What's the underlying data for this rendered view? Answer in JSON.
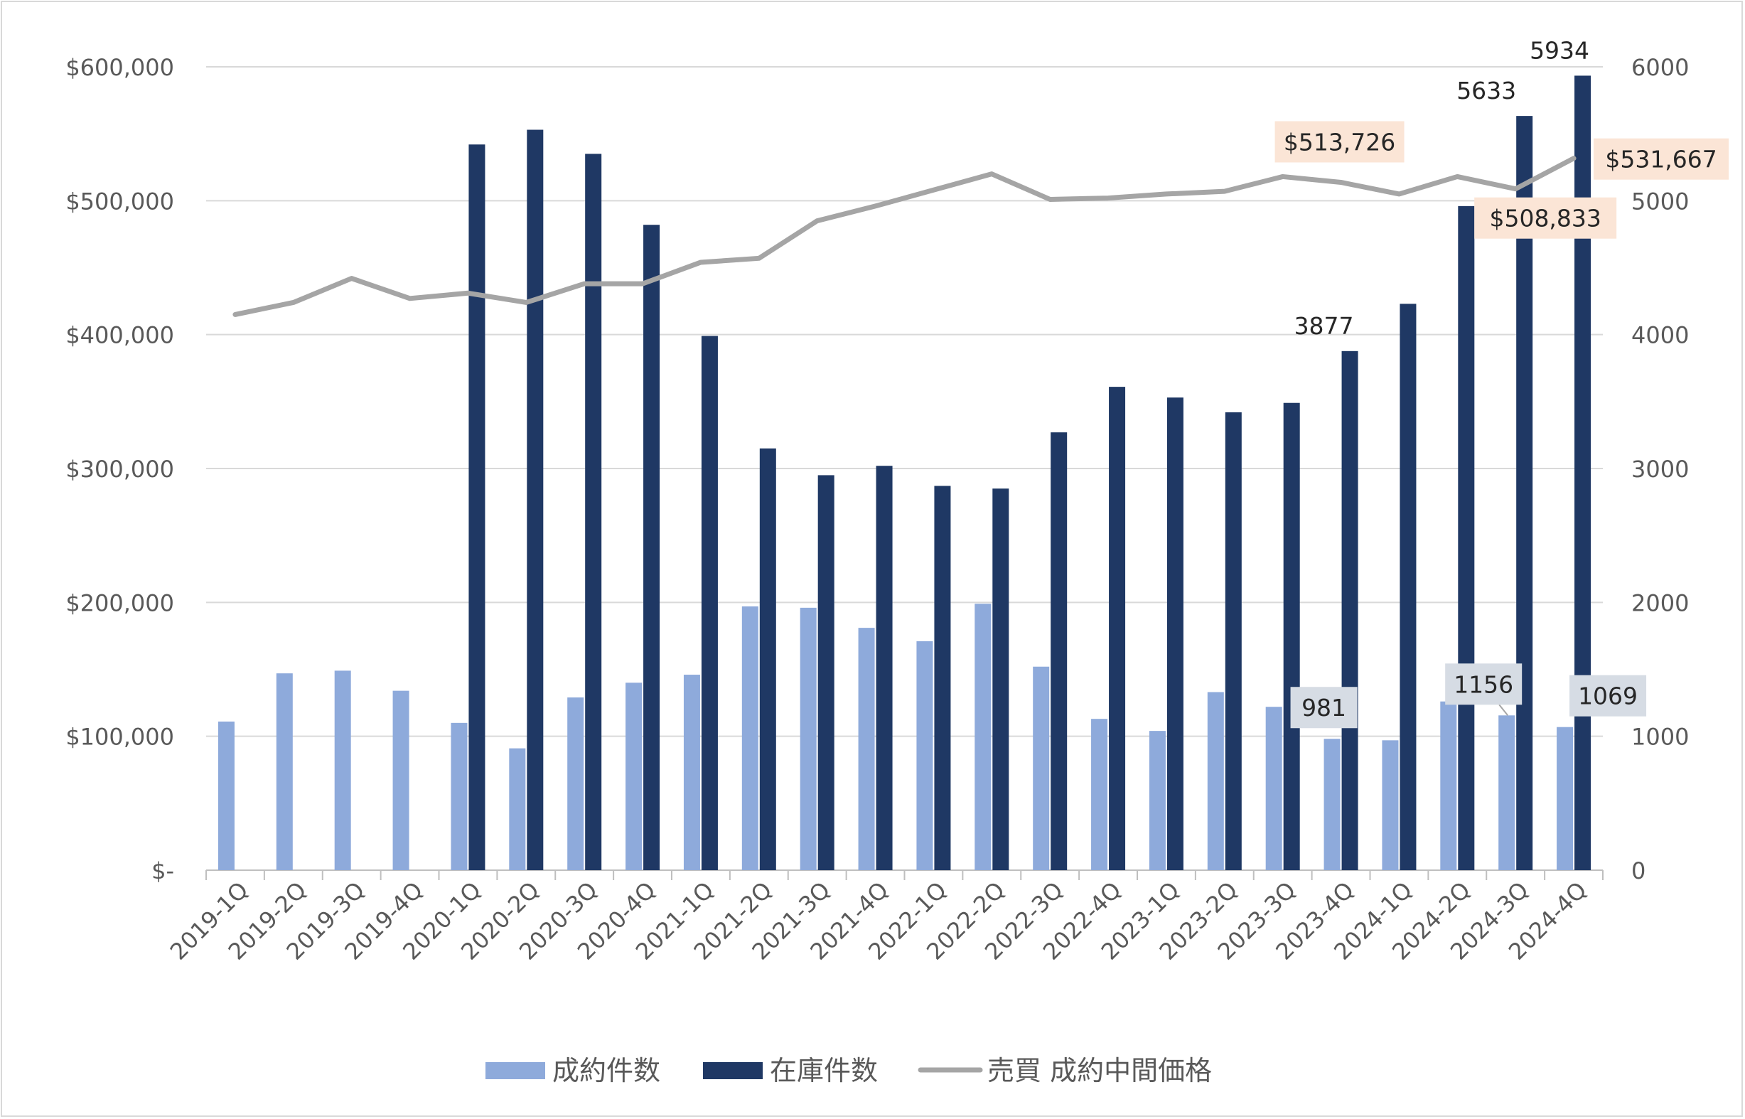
{
  "chart_data": {
    "type": "bar",
    "title": "",
    "categories": [
      "2019-1Q",
      "2019-2Q",
      "2019-3Q",
      "2019-4Q",
      "2020-1Q",
      "2020-2Q",
      "2020-3Q",
      "2020-4Q",
      "2021-1Q",
      "2021-2Q",
      "2021-3Q",
      "2021-4Q",
      "2022-1Q",
      "2022-2Q",
      "2022-3Q",
      "2022-4Q",
      "2023-1Q",
      "2023-2Q",
      "2023-3Q",
      "2023-4Q",
      "2024-1Q",
      "2024-2Q",
      "2024-3Q",
      "2024-4Q"
    ],
    "series": [
      {
        "name": "成約件数",
        "type": "bar",
        "axis": "right",
        "color": "#8eaadb",
        "values": [
          1110,
          1470,
          1490,
          1340,
          1100,
          910,
          1290,
          1400,
          1460,
          1970,
          1960,
          1810,
          1710,
          1990,
          1520,
          1130,
          1040,
          1330,
          1220,
          981,
          970,
          1260,
          1156,
          1069
        ]
      },
      {
        "name": "在庫件数",
        "type": "bar",
        "axis": "right",
        "color": "#1f3864",
        "values": [
          null,
          null,
          null,
          null,
          5420,
          5530,
          5350,
          4820,
          3990,
          3150,
          2950,
          3020,
          2870,
          2850,
          3270,
          3610,
          3530,
          3420,
          3490,
          3877,
          4230,
          4960,
          5633,
          5934
        ]
      },
      {
        "name": "売買 成約中間価格",
        "type": "line",
        "axis": "left",
        "color": "#a5a5a5",
        "values": [
          415000,
          424000,
          442000,
          427000,
          431000,
          424000,
          438000,
          438000,
          454000,
          457000,
          485000,
          496000,
          508000,
          520000,
          501000,
          502000,
          505000,
          507000,
          518000,
          513726,
          505000,
          518000,
          508833,
          531667
        ]
      }
    ],
    "y_left": {
      "ticks": [
        "$-",
        "$100,000",
        "$200,000",
        "$300,000",
        "$400,000",
        "$500,000",
        "$600,000"
      ],
      "range": [
        0,
        600000
      ]
    },
    "y_right": {
      "ticks": [
        "0",
        "1000",
        "2000",
        "3000",
        "4000",
        "5000",
        "6000"
      ],
      "range": [
        0,
        6000
      ]
    },
    "grid": true,
    "legend_position": "bottom",
    "data_labels": [
      {
        "series": 1,
        "index": 19,
        "text": "3877"
      },
      {
        "series": 1,
        "index": 22,
        "text": "5633"
      },
      {
        "series": 1,
        "index": 23,
        "text": "5934"
      },
      {
        "series": 0,
        "index": 19,
        "text": "981"
      },
      {
        "series": 0,
        "index": 22,
        "text": "1156"
      },
      {
        "series": 0,
        "index": 23,
        "text": "1069"
      },
      {
        "series": 2,
        "index": 19,
        "text": "$513,726"
      },
      {
        "series": 2,
        "index": 22,
        "text": "$508,833"
      },
      {
        "series": 2,
        "index": 23,
        "text": "$531,667"
      }
    ]
  }
}
